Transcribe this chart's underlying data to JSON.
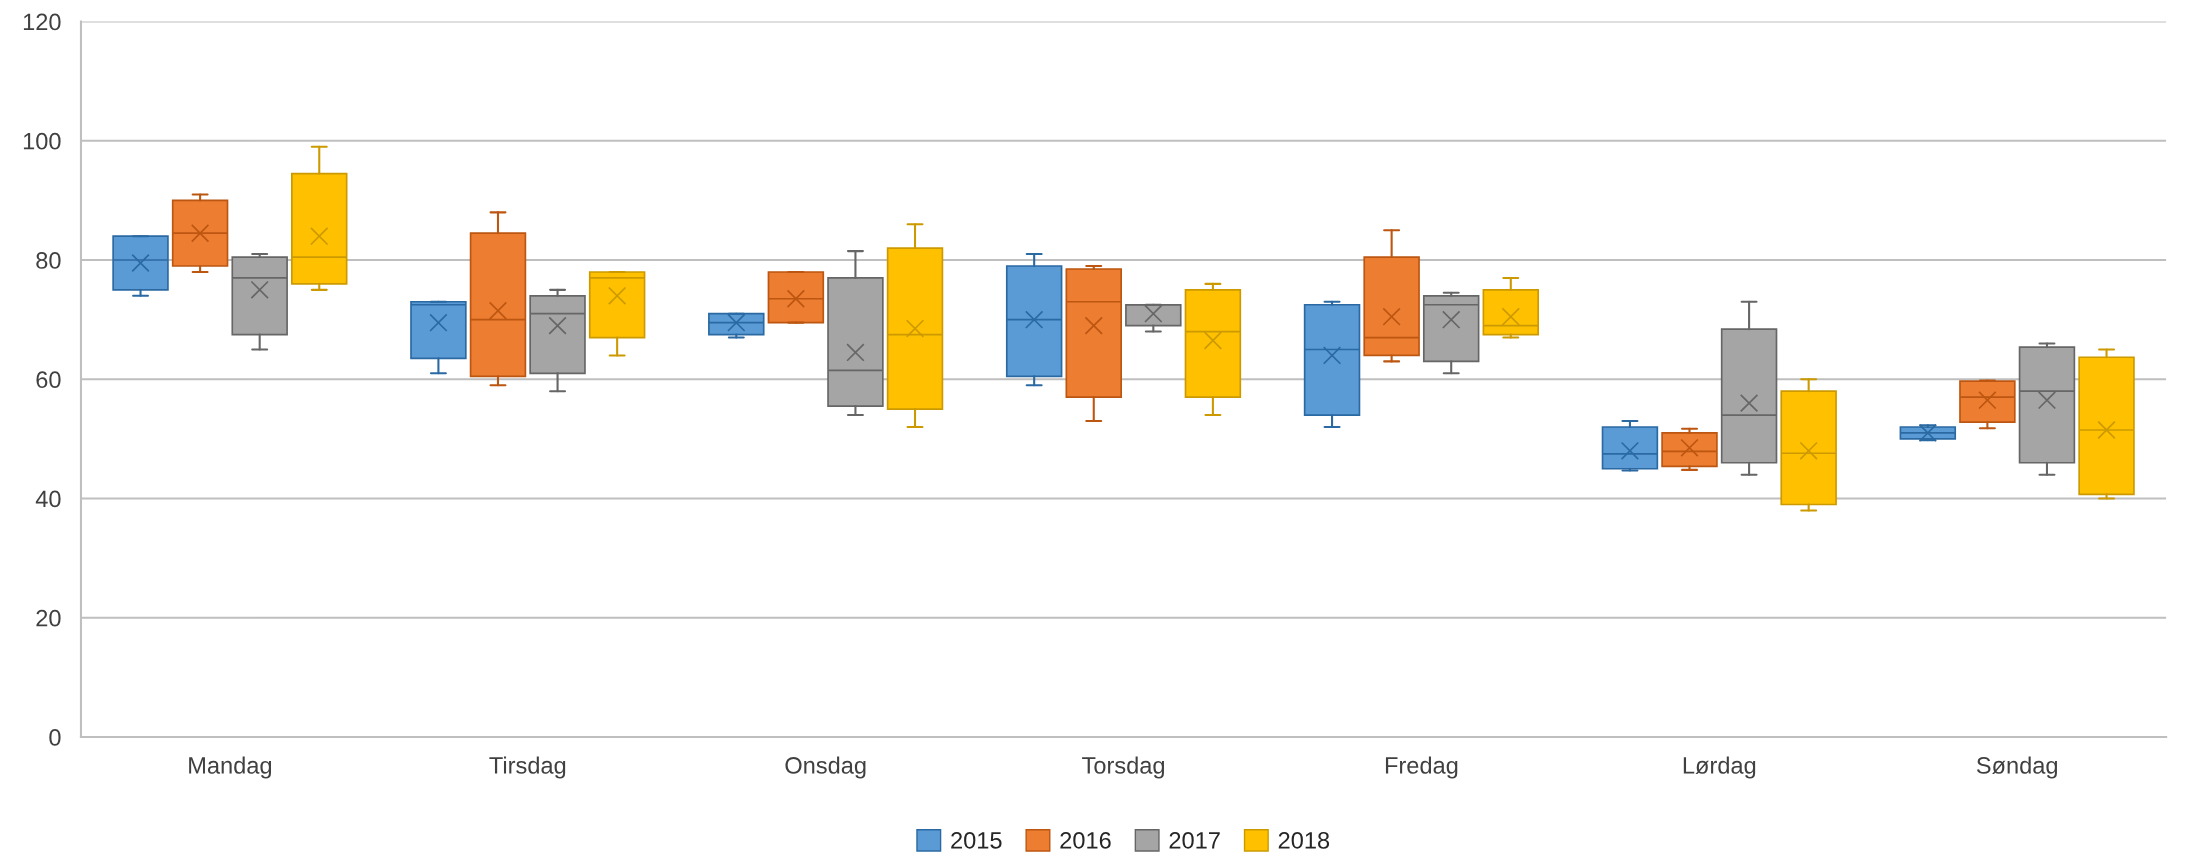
{
  "chart_data": {
    "type": "box",
    "categories": [
      "Mandag",
      "Tirsdag",
      "Onsdag",
      "Torsdag",
      "Fredag",
      "Lørdag",
      "Søndag"
    ],
    "series": [
      {
        "name": "2015",
        "color": "#5b9bd5",
        "boxes": [
          {
            "low": 74,
            "q1": 75,
            "median": 80,
            "q3": 84,
            "high": 84,
            "mean": 79.5
          },
          {
            "low": 61,
            "q1": 63.5,
            "median": 72.5,
            "q3": 73,
            "high": 73,
            "mean": 69.5
          },
          {
            "low": 67,
            "q1": 67.5,
            "median": 69.5,
            "q3": 71,
            "high": 71,
            "mean": 69.5
          },
          {
            "low": 59,
            "q1": 60.5,
            "median": 70,
            "q3": 79,
            "high": 81,
            "mean": 70
          },
          {
            "low": 52,
            "q1": 54,
            "median": 65,
            "q3": 72.5,
            "high": 73,
            "mean": 64
          },
          {
            "low": 44.7,
            "q1": 45,
            "median": 47.5,
            "q3": 52,
            "high": 53,
            "mean": 48
          },
          {
            "low": 49.8,
            "q1": 50,
            "median": 51,
            "q3": 52,
            "high": 52.3,
            "mean": 51
          }
        ]
      },
      {
        "name": "2016",
        "color": "#ed7d31",
        "boxes": [
          {
            "low": 78,
            "q1": 79,
            "median": 84.5,
            "q3": 90,
            "high": 91,
            "mean": 84.5
          },
          {
            "low": 59,
            "q1": 60.5,
            "median": 70,
            "q3": 84.5,
            "high": 88,
            "mean": 71.5
          },
          {
            "low": 69.5,
            "q1": 69.5,
            "median": 73.5,
            "q3": 78,
            "high": 78,
            "mean": 73.5
          },
          {
            "low": 53,
            "q1": 57,
            "median": 73,
            "q3": 78.5,
            "high": 79,
            "mean": 69
          },
          {
            "low": 63,
            "q1": 64,
            "median": 67,
            "q3": 80.5,
            "high": 85,
            "mean": 70.5
          },
          {
            "low": 44.8,
            "q1": 45.4,
            "median": 47.9,
            "q3": 51,
            "high": 51.7,
            "mean": 48.5
          },
          {
            "low": 51.8,
            "q1": 52.8,
            "median": 57,
            "q3": 59.7,
            "high": 59.8,
            "mean": 56.5
          }
        ]
      },
      {
        "name": "2017",
        "color": "#a5a5a5",
        "boxes": [
          {
            "low": 65,
            "q1": 67.5,
            "median": 77,
            "q3": 80.5,
            "high": 81,
            "mean": 75
          },
          {
            "low": 58,
            "q1": 61,
            "median": 71,
            "q3": 74,
            "high": 75,
            "mean": 69
          },
          {
            "low": 54,
            "q1": 55.5,
            "median": 61.5,
            "q3": 77,
            "high": 81.5,
            "mean": 64.5
          },
          {
            "low": 68,
            "q1": 69,
            "median": 72.5,
            "q3": 72.5,
            "high": 72.5,
            "mean": 71
          },
          {
            "low": 61,
            "q1": 63,
            "median": 72.5,
            "q3": 74,
            "high": 74.5,
            "mean": 70
          },
          {
            "low": 44,
            "q1": 46,
            "median": 54,
            "q3": 68.4,
            "high": 73,
            "mean": 56
          },
          {
            "low": 44,
            "q1": 46,
            "median": 58,
            "q3": 65.4,
            "high": 66,
            "mean": 56.5
          }
        ]
      },
      {
        "name": "2018",
        "color": "#ffc000",
        "boxes": [
          {
            "low": 75,
            "q1": 76,
            "median": 80.5,
            "q3": 94.5,
            "high": 99,
            "mean": 84
          },
          {
            "low": 64,
            "q1": 67,
            "median": 77,
            "q3": 78,
            "high": 78,
            "mean": 74
          },
          {
            "low": 52,
            "q1": 55,
            "median": 67.5,
            "q3": 82,
            "high": 86,
            "mean": 68.5
          },
          {
            "low": 54,
            "q1": 57,
            "median": 68,
            "q3": 75,
            "high": 76,
            "mean": 66.5
          },
          {
            "low": 67,
            "q1": 67.5,
            "median": 69,
            "q3": 75,
            "high": 77,
            "mean": 70.5
          },
          {
            "low": 38,
            "q1": 39,
            "median": 47.6,
            "q3": 58,
            "high": 60,
            "mean": 48
          },
          {
            "low": 40,
            "q1": 40.7,
            "median": 51.5,
            "q3": 63.7,
            "high": 65,
            "mean": 51.5
          }
        ]
      }
    ],
    "ylim": [
      0,
      120
    ],
    "yticks": [
      0,
      20,
      40,
      60,
      80,
      100,
      120
    ],
    "grid": "y",
    "legend": "bottom"
  }
}
